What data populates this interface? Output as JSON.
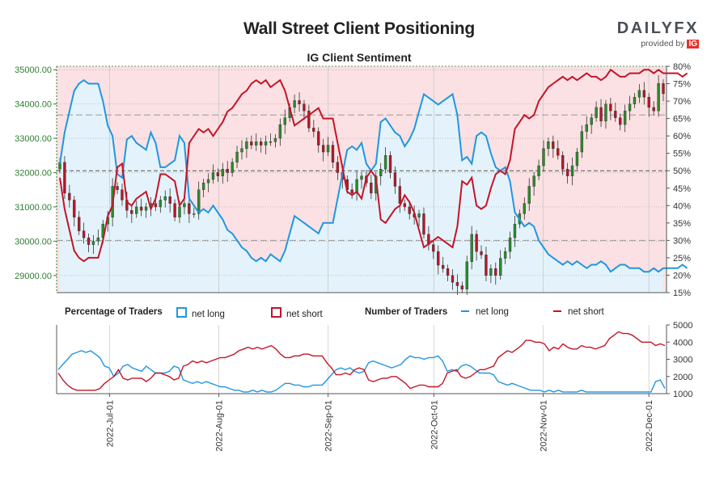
{
  "header": {
    "title": "Wall Street Client Positioning",
    "subtitle": "IG Client Sentiment",
    "logo_word": "DAILYFX",
    "logo_provided": "provided by",
    "logo_ig": "IG"
  },
  "legend": {
    "pct_title": "Percentage of Traders",
    "pct_long": "net long",
    "pct_short": "net short",
    "num_title": "Number of Traders",
    "num_long": "net long",
    "num_short": "net short"
  },
  "colors": {
    "long": "#2196e0",
    "short": "#c41428",
    "long_fill": "#e4f3fb",
    "short_fill": "#fbe1e3",
    "up": "#2b8a2b",
    "down": "#b3172b",
    "price_axis": "#2e7d32"
  },
  "chart_data": [
    {
      "type": "candlestick",
      "title": "IG Client Sentiment",
      "y_left_ticks": [
        "35000.00",
        "34000.00",
        "33000.00",
        "32000.00",
        "31000.00",
        "30000.00",
        "29000.00"
      ],
      "y_left_range": [
        28500,
        35100
      ],
      "y_right_ticks": [
        "80%",
        "75%",
        "70%",
        "65%",
        "60%",
        "55%",
        "50%",
        "45%",
        "40%",
        "35%",
        "30%",
        "25%",
        "20%",
        "15%"
      ],
      "y_right_range": [
        15,
        80
      ],
      "date_range": [
        "2022-06-16",
        "2022-12-06"
      ],
      "x_ticks": [
        "2022-Jul-01",
        "2022-Aug-01",
        "2022-Sep-01",
        "2022-Oct-01",
        "2022-Nov-01",
        "2022-Dec-01"
      ],
      "reference_lines_pct": [
        30,
        50,
        66
      ],
      "close": [
        32300,
        31400,
        31200,
        30700,
        30300,
        30100,
        29900,
        30000,
        30100,
        30500,
        30700,
        31600,
        31500,
        31200,
        30900,
        30800,
        31000,
        30900,
        31000,
        31100,
        31000,
        31200,
        31300,
        31100,
        30700,
        31000,
        31100,
        30800,
        30800,
        31500,
        31700,
        31800,
        32000,
        31900,
        32100,
        32000,
        32300,
        32600,
        32700,
        32900,
        32800,
        32900,
        32800,
        32900,
        32900,
        33000,
        33400,
        33600,
        33900,
        34100,
        34000,
        33800,
        33300,
        33200,
        32800,
        32600,
        32800,
        32300,
        32000,
        31800,
        31500,
        31400,
        31800,
        31900,
        31700,
        31400,
        31900,
        32100,
        32500,
        32000,
        31600,
        31100,
        31000,
        30800,
        30700,
        30800,
        30200,
        29900,
        29700,
        29300,
        29200,
        29000,
        28800,
        28700,
        28600,
        29400,
        30200,
        29700,
        29600,
        29000,
        29200,
        29000,
        29500,
        29700,
        30100,
        30500,
        30800,
        31100,
        31600,
        31900,
        32200,
        32700,
        32900,
        32700,
        32500,
        32100,
        31900,
        32200,
        32600,
        33200,
        33400,
        33600,
        33900,
        33500,
        34000,
        33800,
        33600,
        33400,
        33800,
        34000,
        34200,
        34400,
        34200,
        33900,
        33800,
        34600,
        34300
      ],
      "net_long_pct": [
        52,
        61,
        67,
        73,
        75,
        76,
        75,
        75,
        75,
        70,
        63,
        60,
        49,
        48,
        59,
        60,
        58,
        57,
        56,
        61,
        58,
        51,
        51,
        52,
        53,
        60,
        58,
        42,
        40,
        38,
        39,
        38,
        40,
        38,
        36,
        33,
        32,
        30,
        28,
        27,
        25,
        24,
        25,
        24,
        26,
        25,
        24,
        27,
        32,
        37,
        36,
        35,
        34,
        33,
        32,
        35,
        35,
        35,
        42,
        49,
        56,
        57,
        56,
        58,
        52,
        50,
        52,
        64,
        65,
        63,
        61,
        60,
        57,
        59,
        62,
        67,
        72,
        71,
        70,
        69,
        70,
        71,
        72,
        66,
        53,
        54,
        52,
        60,
        61,
        60,
        55,
        51,
        50,
        51,
        47,
        38,
        36,
        34,
        35,
        34,
        30,
        28,
        26,
        25,
        24,
        23,
        24,
        23,
        24,
        23,
        22,
        23,
        23,
        24,
        23,
        21,
        22,
        23,
        23,
        22,
        22,
        22,
        21,
        21,
        22,
        21,
        22,
        22,
        22,
        22,
        23,
        22
      ],
      "net_short_pct": [
        48,
        39,
        33,
        27,
        25,
        24,
        25,
        25,
        25,
        30,
        37,
        40,
        51,
        52,
        41,
        40,
        42,
        43,
        44,
        39,
        42,
        49,
        49,
        48,
        47,
        40,
        42,
        58,
        60,
        62,
        61,
        62,
        60,
        62,
        64,
        67,
        68,
        70,
        72,
        73,
        75,
        76,
        75,
        76,
        74,
        75,
        76,
        73,
        68,
        63,
        64,
        65,
        66,
        67,
        68,
        65,
        65,
        65,
        58,
        51,
        44,
        43,
        44,
        42,
        48,
        50,
        48,
        36,
        35,
        37,
        39,
        40,
        43,
        41,
        38,
        33,
        28,
        29,
        30,
        31,
        30,
        29,
        28,
        34,
        47,
        46,
        48,
        40,
        39,
        40,
        45,
        49,
        50,
        49,
        53,
        62,
        64,
        66,
        65,
        66,
        70,
        72,
        74,
        75,
        76,
        77,
        76,
        77,
        76,
        77,
        78,
        77,
        77,
        76,
        77,
        79,
        78,
        77,
        77,
        78,
        78,
        78,
        79,
        79,
        78,
        79,
        78,
        78,
        78,
        78,
        77,
        78
      ]
    },
    {
      "type": "line",
      "title": "Number of Traders",
      "y_ticks": [
        "5000",
        "4000",
        "3000",
        "2000",
        "1000"
      ],
      "y_range": [
        1000,
        5000
      ],
      "series": [
        {
          "name": "net long",
          "values": [
            2400,
            2700,
            3000,
            3300,
            3400,
            3500,
            3400,
            3500,
            3300,
            3100,
            2600,
            2500,
            2000,
            2200,
            2600,
            2700,
            2500,
            2400,
            2300,
            2600,
            2400,
            2200,
            2200,
            2200,
            2300,
            2600,
            2500,
            1800,
            1700,
            1600,
            1700,
            1600,
            1700,
            1600,
            1500,
            1400,
            1400,
            1300,
            1200,
            1200,
            1100,
            1100,
            1200,
            1100,
            1200,
            1100,
            1100,
            1200,
            1400,
            1600,
            1600,
            1500,
            1500,
            1400,
            1400,
            1500,
            1500,
            1500,
            1800,
            2100,
            2400,
            2500,
            2400,
            2500,
            2300,
            2200,
            2300,
            2800,
            2900,
            2800,
            2700,
            2600,
            2500,
            2600,
            2700,
            3000,
            3200,
            3100,
            3100,
            3000,
            3100,
            3100,
            3200,
            2900,
            2300,
            2400,
            2300,
            2600,
            2700,
            2600,
            2400,
            2200,
            2200,
            2200,
            2100,
            1700,
            1600,
            1500,
            1600,
            1500,
            1400,
            1300,
            1200,
            1200,
            1200,
            1100,
            1200,
            1100,
            1200,
            1100,
            1100,
            1100,
            1100,
            1200,
            1100,
            1100,
            1100,
            1100,
            1100,
            1100,
            1100,
            1100,
            1100,
            1100,
            1100,
            1100,
            1100,
            1100,
            1100,
            1700,
            1800,
            1300
          ]
        },
        {
          "name": "net short",
          "values": [
            2200,
            1800,
            1500,
            1300,
            1200,
            1200,
            1200,
            1200,
            1200,
            1300,
            1600,
            1800,
            2000,
            2400,
            1900,
            1800,
            1900,
            1900,
            1900,
            1700,
            1900,
            2200,
            2200,
            2100,
            2000,
            1800,
            1900,
            2600,
            2700,
            2900,
            2800,
            2900,
            2800,
            2900,
            3000,
            3100,
            3100,
            3200,
            3300,
            3500,
            3600,
            3700,
            3600,
            3700,
            3600,
            3700,
            3800,
            3600,
            3300,
            3100,
            3100,
            3200,
            3200,
            3300,
            3300,
            3200,
            3200,
            3200,
            2800,
            2500,
            2100,
            2100,
            2200,
            2100,
            2400,
            2500,
            2400,
            1800,
            1700,
            1800,
            1900,
            1900,
            2000,
            2000,
            1800,
            1600,
            1300,
            1400,
            1500,
            1500,
            1400,
            1400,
            1400,
            1600,
            2200,
            2300,
            2400,
            2000,
            1900,
            2000,
            2200,
            2400,
            2400,
            2500,
            2600,
            3100,
            3300,
            3500,
            3400,
            3600,
            3800,
            4100,
            4100,
            4000,
            4000,
            3900,
            3500,
            3700,
            3600,
            3900,
            3700,
            3600,
            3600,
            3800,
            3700,
            3700,
            3600,
            3700,
            3800,
            4200,
            4400,
            4600,
            4500,
            4500,
            4400,
            4200,
            4000,
            4000,
            4000,
            3800,
            3900,
            3800
          ]
        }
      ]
    }
  ]
}
